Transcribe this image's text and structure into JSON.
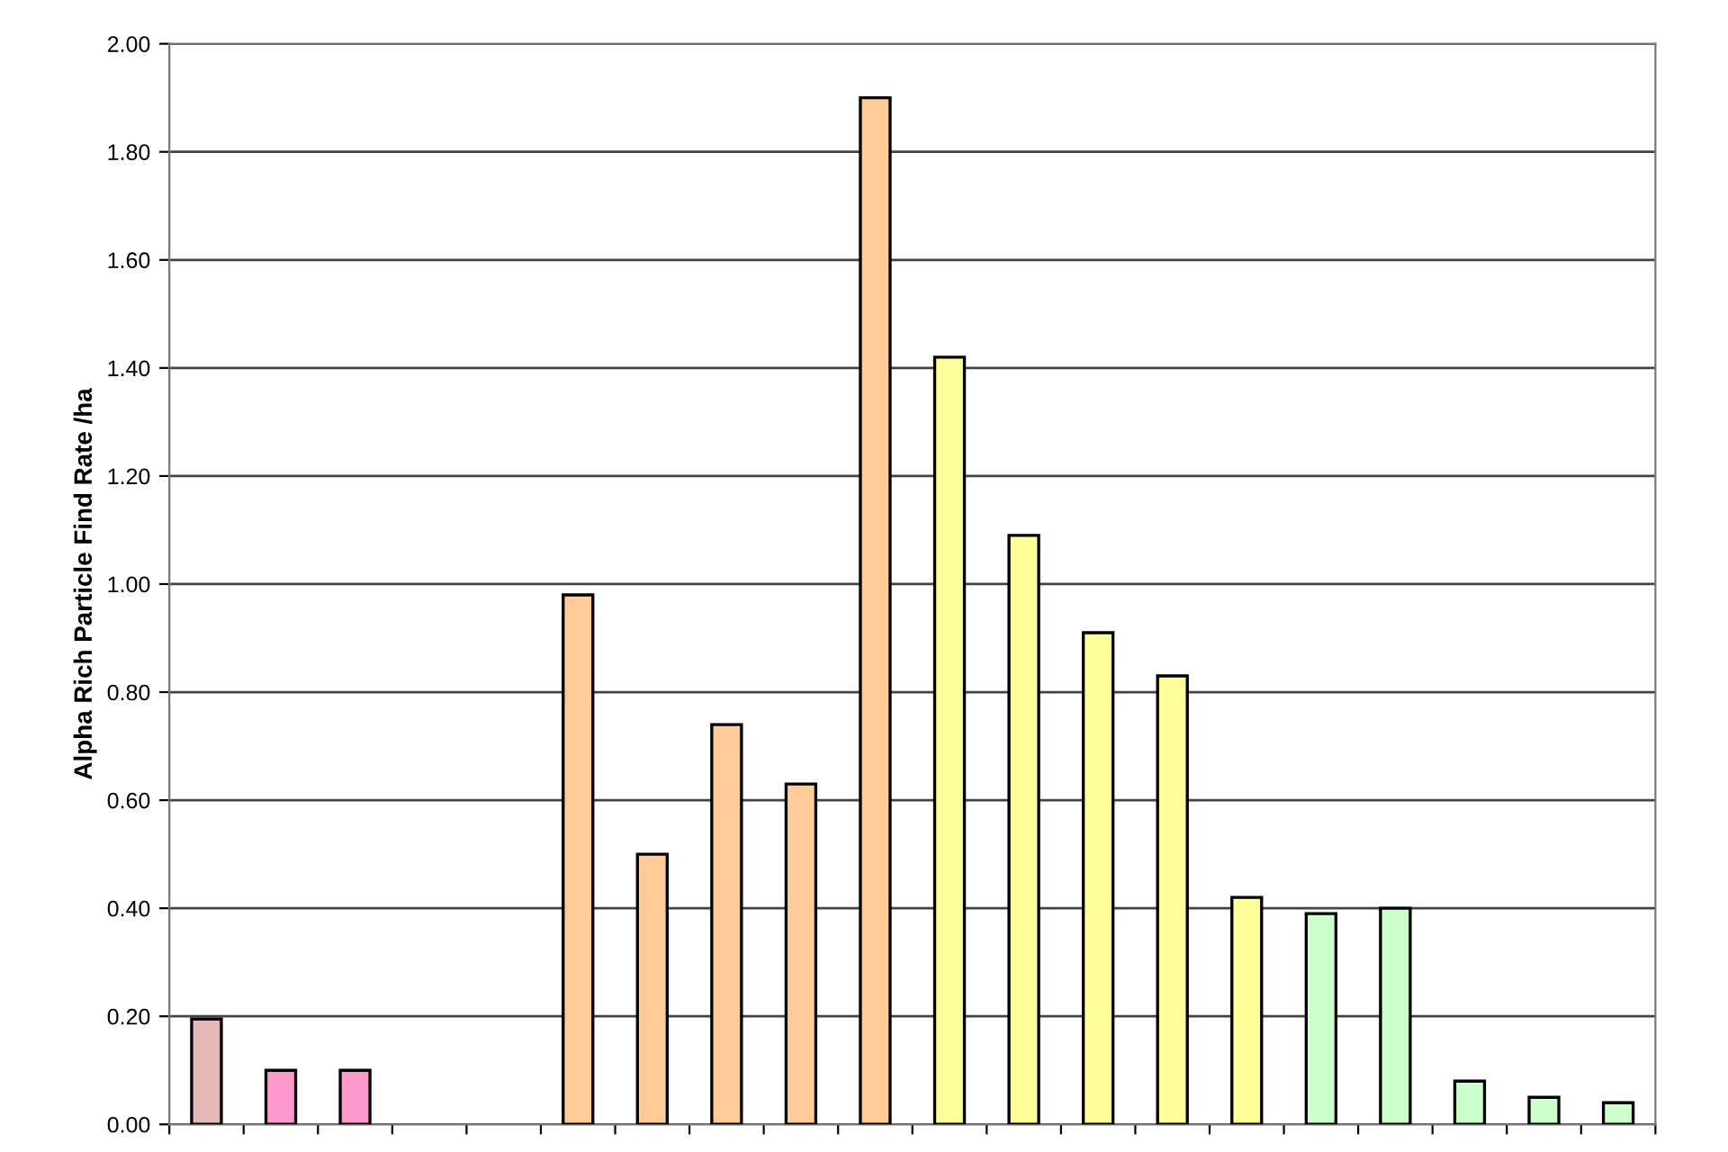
{
  "chart_data": {
    "type": "bar",
    "ylabel": "Alpha Rich Particle Find Rate /ha",
    "categories": [
      null,
      null,
      null,
      null,
      null,
      null,
      null,
      null,
      null,
      null,
      null,
      null,
      null,
      null,
      null,
      null,
      null,
      null,
      null,
      null
    ],
    "values": [
      0.195,
      0.1,
      0.1,
      null,
      null,
      0.98,
      0.5,
      0.74,
      0.63,
      1.9,
      1.42,
      1.09,
      0.91,
      0.83,
      0.42,
      0.39,
      0.4,
      0.08,
      0.05,
      0.04
    ],
    "colors": [
      "#e6b8b8",
      "#ff99cc",
      "#ff99cc",
      "#ffcc99",
      "#ffcc99",
      "#ffcc99",
      "#ffcc99",
      "#ffcc99",
      "#ffcc99",
      "#ffcc99",
      "#ffff99",
      "#ffff99",
      "#ffff99",
      "#ffff99",
      "#ffff99",
      "#ccffcc",
      "#ccffcc",
      "#ccffcc",
      "#ccffcc",
      "#ccffcc"
    ],
    "ylim": [
      0,
      2.0
    ],
    "yticks": [
      {
        "value": 0,
        "label": "0.00"
      },
      {
        "value": 0.2,
        "label": "0.20"
      },
      {
        "value": 0.4,
        "label": "0.40"
      },
      {
        "value": 0.6,
        "label": "0.60"
      },
      {
        "value": 0.8,
        "label": "0.80"
      },
      {
        "value": 1.0,
        "label": "1.00"
      },
      {
        "value": 1.2,
        "label": "1.20"
      },
      {
        "value": 1.4,
        "label": "1.40"
      },
      {
        "value": 1.6,
        "label": "1.60"
      },
      {
        "value": 1.8,
        "label": "1.80"
      },
      {
        "value": 2.0,
        "label": "2.00"
      }
    ],
    "grid": "y"
  }
}
